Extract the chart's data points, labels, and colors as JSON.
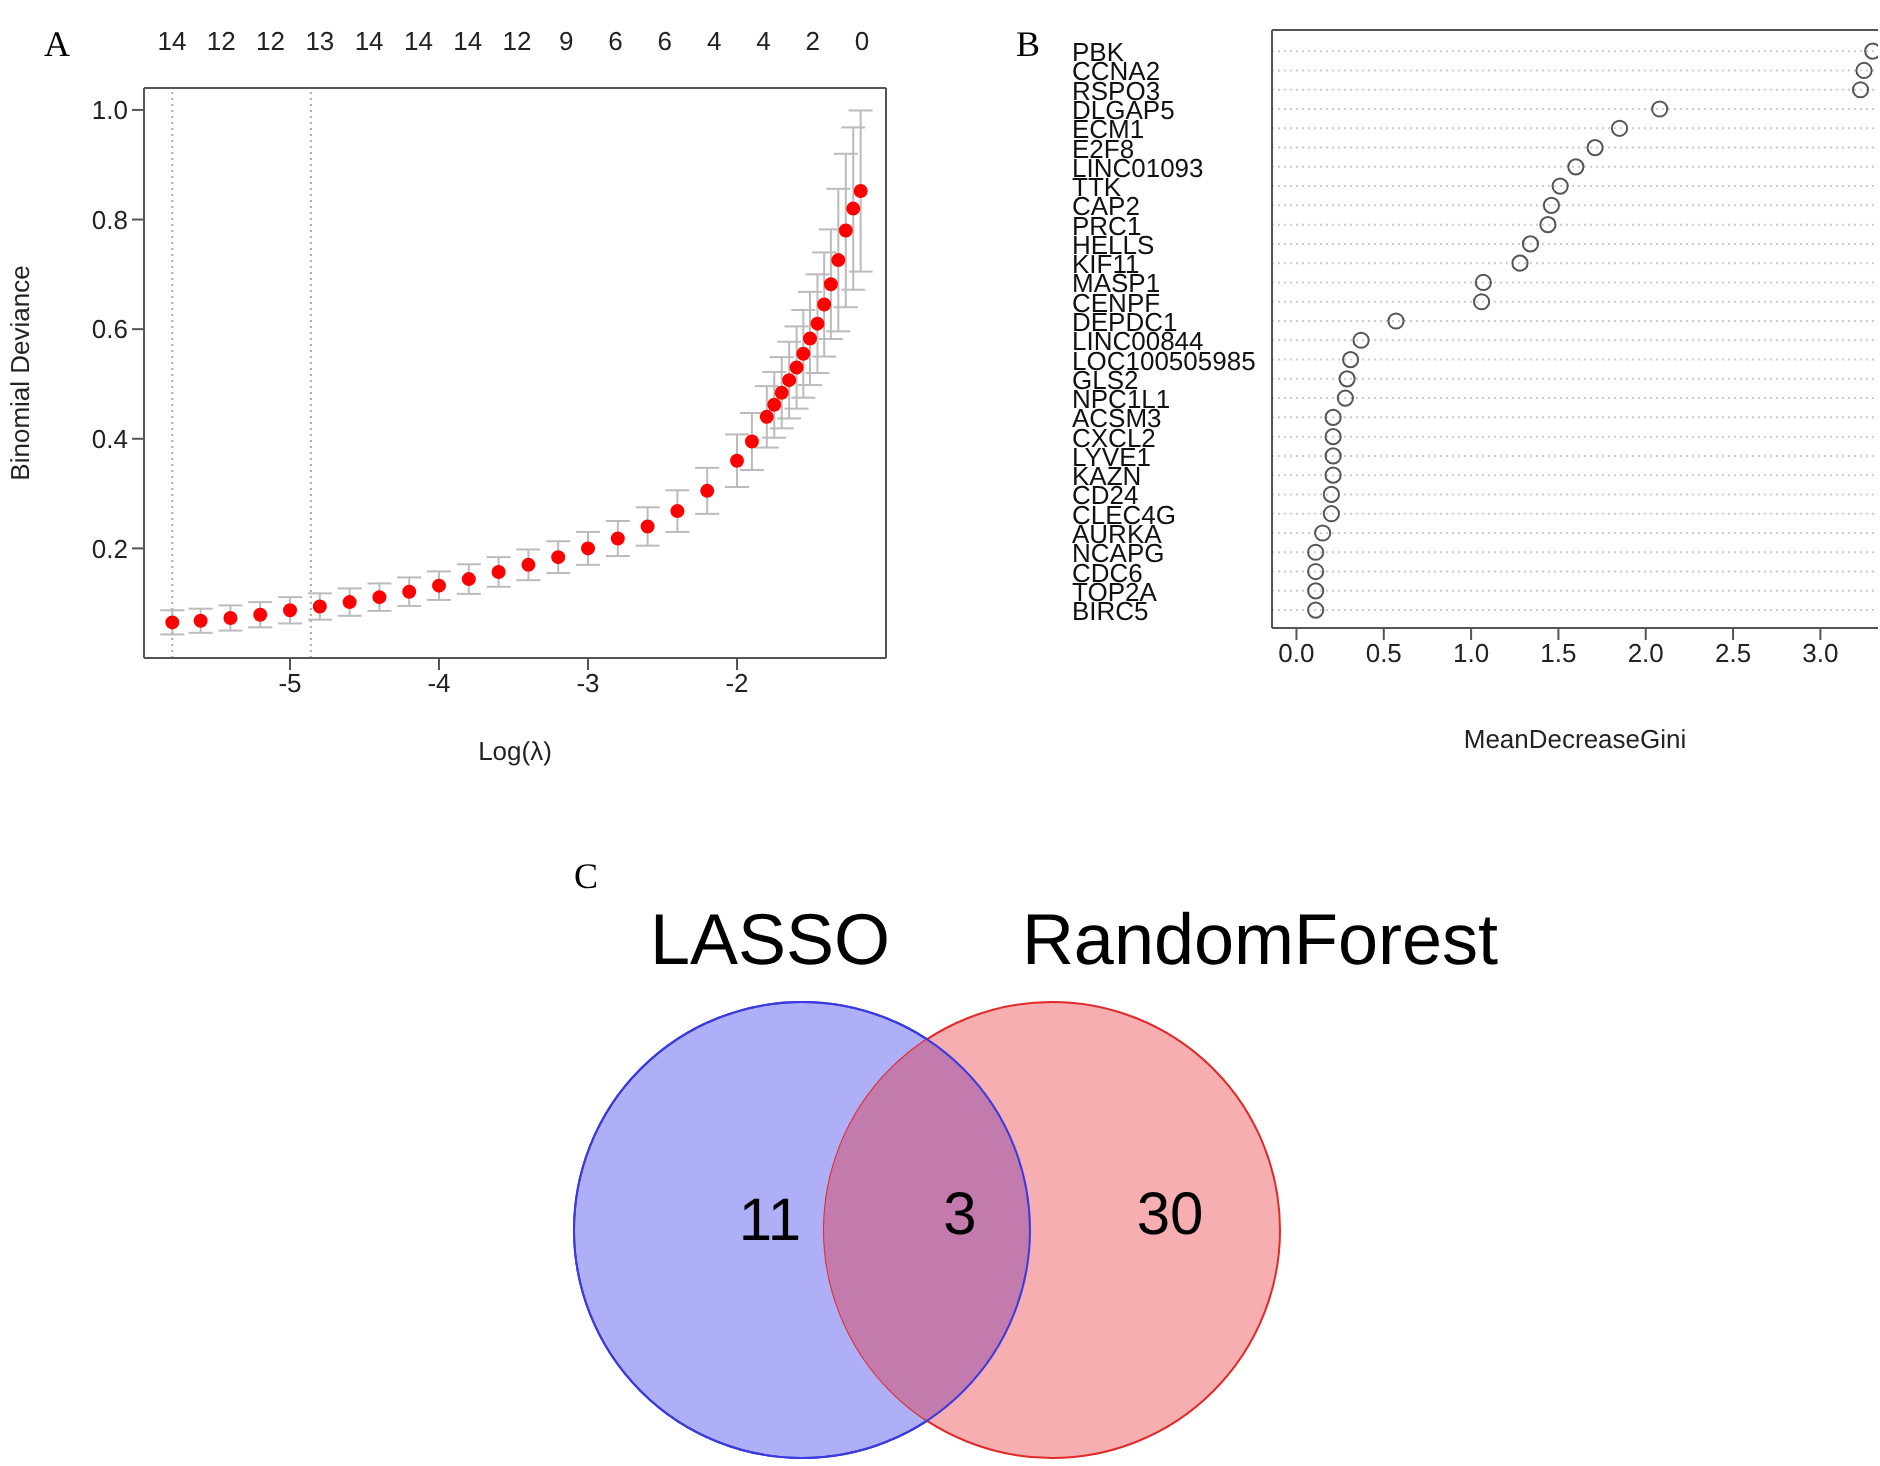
{
  "chart_data": [
    {
      "type": "scatter",
      "title": "A",
      "xlabel": "Log(λ)",
      "ylabel": "Binomial Deviance",
      "color": "#ff0000",
      "marker": "circle",
      "x": [
        -5.79,
        -5.6,
        -5.4,
        -5.2,
        -5.0,
        -4.8,
        -4.6,
        -4.4,
        -4.2,
        -4.0,
        -3.8,
        -3.6,
        -3.4,
        -3.2,
        -3.0,
        -2.8,
        -2.6,
        -2.4,
        -2.2,
        -2.0,
        -1.9,
        -1.8,
        -1.75,
        -1.7,
        -1.65,
        -1.6,
        -1.555,
        -1.51,
        -1.46,
        -1.415,
        -1.37,
        -1.32,
        -1.27,
        -1.22,
        -1.17
      ],
      "values": [
        0.065,
        0.068,
        0.073,
        0.079,
        0.087,
        0.094,
        0.102,
        0.111,
        0.121,
        0.132,
        0.144,
        0.157,
        0.17,
        0.184,
        0.2,
        0.218,
        0.24,
        0.268,
        0.305,
        0.36,
        0.395,
        0.44,
        0.462,
        0.484,
        0.507,
        0.53,
        0.555,
        0.583,
        0.61,
        0.645,
        0.682,
        0.726,
        0.78,
        0.82,
        0.852
      ],
      "errors": [
        0.022,
        0.022,
        0.023,
        0.023,
        0.024,
        0.024,
        0.025,
        0.025,
        0.026,
        0.026,
        0.027,
        0.027,
        0.028,
        0.029,
        0.03,
        0.032,
        0.035,
        0.038,
        0.042,
        0.048,
        0.052,
        0.056,
        0.06,
        0.065,
        0.07,
        0.075,
        0.08,
        0.085,
        0.09,
        0.095,
        0.1,
        0.13,
        0.14,
        0.148,
        0.147
      ],
      "xlim": [
        -5.98,
        -1.0
      ],
      "xticks": [
        -5,
        -4,
        -3,
        -2
      ],
      "ylim": [
        0.0,
        1.04
      ],
      "yticks": [
        0.2,
        0.4,
        0.6,
        0.8,
        {
          "value": 1,
          "label": "1.0"
        }
      ],
      "annotations": [
        "14",
        "12",
        "12",
        "13",
        "14",
        "14",
        "14",
        "12",
        "9",
        "6",
        "6",
        "4",
        "4",
        "2",
        "0"
      ],
      "ref_lines": [
        {
          "axis": "x",
          "value": -5.79,
          "color": "#aaaaaa",
          "line_style": "dotted"
        },
        {
          "axis": "x",
          "value": -4.86,
          "color": "#aaaaaa",
          "line_style": "dotted"
        }
      ]
    },
    {
      "type": "scatter",
      "title": "B",
      "xlabel": "MeanDecreaseGini",
      "orientation": "horizontal",
      "color": "#555555",
      "marker": "circle",
      "grid": "y",
      "categories": [
        "PBK",
        "CCNA2",
        "RSPO3",
        "DLGAP5",
        "ECM1",
        "E2F8",
        "LINC01093",
        "TTK",
        "CAP2",
        "PRC1",
        "HELLS",
        "KIF11",
        "MASP1",
        "CENPF",
        "DEPDC1",
        "LINC00844",
        "LOC100505985",
        "GLS2",
        "NPC1L1",
        "ACSM3",
        "CXCL2",
        "LYVE1",
        "KAZN",
        "CD24",
        "CLEC4G",
        "AURKA",
        "NCAPG",
        "CDC6",
        "TOP2A",
        "BIRC5"
      ],
      "values": [
        3.3,
        3.25,
        3.23,
        2.08,
        1.85,
        1.71,
        1.6,
        1.51,
        1.46,
        1.44,
        1.34,
        1.28,
        1.07,
        1.06,
        0.57,
        0.37,
        0.31,
        0.29,
        0.28,
        0.21,
        0.21,
        0.21,
        0.21,
        0.2,
        0.2,
        0.15,
        0.11,
        0.11,
        0.11,
        0.11
      ],
      "xlim": [
        -0.14,
        3.33
      ],
      "xticks": [
        {
          "value": 0,
          "label": "0.0"
        },
        0.5,
        {
          "value": 1,
          "label": "1.0"
        },
        1.5,
        {
          "value": 2,
          "label": "2.0"
        },
        2.5,
        {
          "value": 3,
          "label": "3.0"
        }
      ]
    },
    {
      "type": "other",
      "title": "C",
      "data_labels": true,
      "categories": [
        "LASSO",
        null,
        "RandomForest"
      ],
      "values": [
        11,
        3,
        30
      ],
      "colors": [
        "#afaff8",
        "#c27bac",
        "#f7aeb1"
      ]
    }
  ]
}
